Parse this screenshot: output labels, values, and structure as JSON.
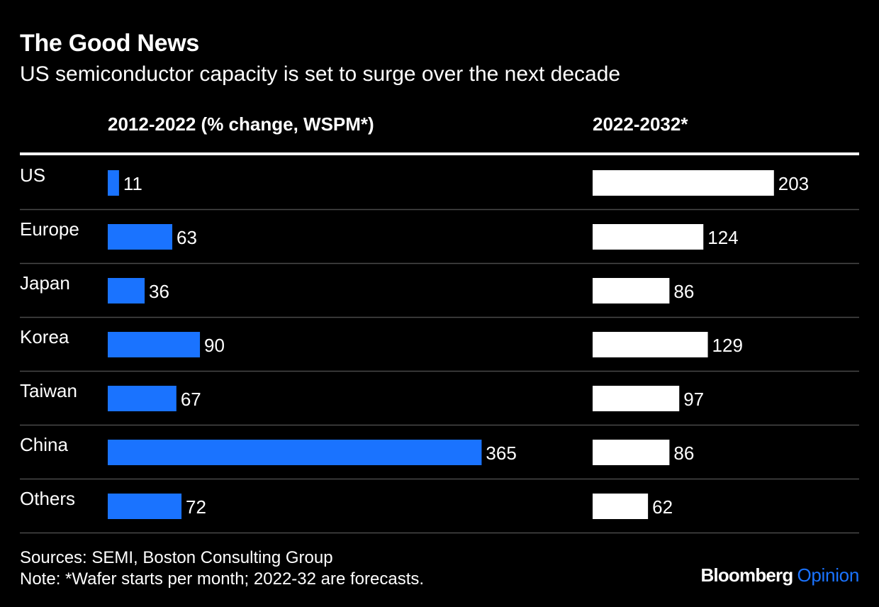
{
  "title": "The Good News",
  "subtitle": "US semiconductor capacity is set to surge over the next decade",
  "colors": {
    "background": "#000000",
    "series_2012_2022": "#1a73ff",
    "series_2022_2032": "#ffffff",
    "divider": "#4a4a4a"
  },
  "chart_data": {
    "type": "bar",
    "orientation": "horizontal",
    "categories": [
      "US",
      "Europe",
      "Japan",
      "Korea",
      "Taiwan",
      "China",
      "Others"
    ],
    "series": [
      {
        "name": "2012-2022 (% change, WSPM*)",
        "values": [
          11,
          63,
          36,
          90,
          67,
          365,
          72
        ]
      },
      {
        "name": "2022-2032*",
        "values": [
          203,
          124,
          86,
          129,
          97,
          86,
          62
        ]
      }
    ]
  },
  "footer": {
    "sources": "Sources: SEMI, Boston Consulting Group",
    "note": "Note: *Wafer starts per month; 2022-32 are forecasts."
  },
  "brand": {
    "name": "Bloomberg",
    "section": "Opinion"
  }
}
